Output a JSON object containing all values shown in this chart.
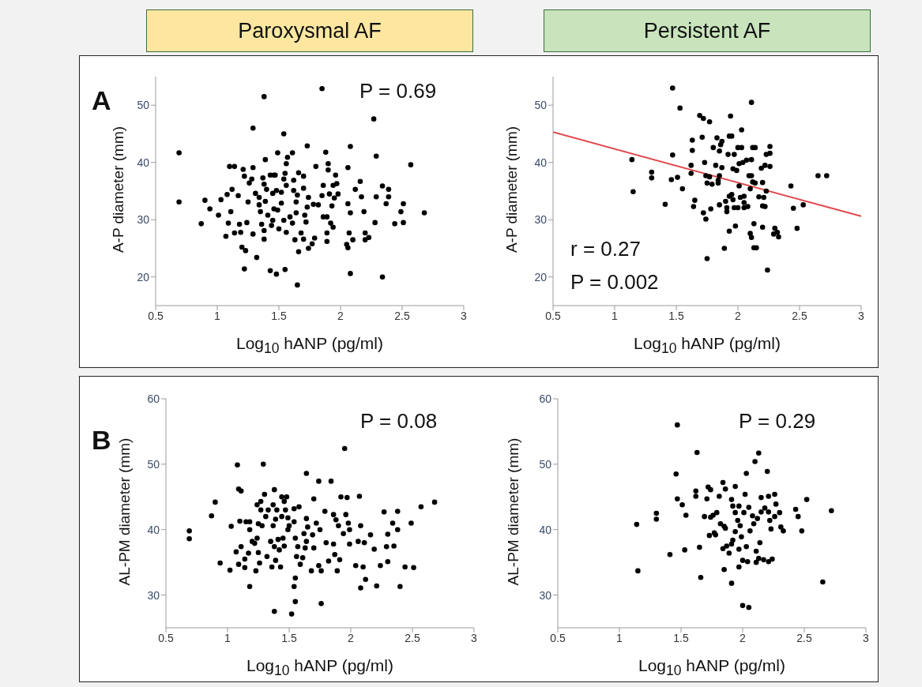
{
  "chart_data": [
    {
      "type": "scatter",
      "title": "Paroxysmal AF",
      "xlabel": "Log$_{10}$ hANP (pg/ml)",
      "ylabel": "A-P diameter (mm)",
      "annotations": [
        "A",
        "P = 0.69"
      ],
      "xlim": [
        0.5,
        3
      ],
      "xticks": [
        0.5,
        1,
        1.5,
        2,
        2.5,
        3
      ],
      "ylim": [
        15,
        55
      ],
      "yticks": [
        20,
        30,
        40,
        50
      ],
      "marker": "circle",
      "series": [
        {
          "color": "#000000",
          "x": [
            0.69,
            0.69,
            0.87,
            0.9,
            0.94,
            1.01,
            1.03,
            1.07,
            1.08,
            1.09,
            1.1,
            1.11,
            1.12,
            1.14,
            1.14,
            1.17,
            1.18,
            1.19,
            1.2,
            1.21,
            1.22,
            1.22,
            1.23,
            1.24,
            1.25,
            1.26,
            1.28,
            1.29,
            1.29,
            1.29,
            1.31,
            1.32,
            1.34,
            1.34,
            1.35,
            1.36,
            1.37,
            1.38,
            1.38,
            1.38,
            1.38,
            1.39,
            1.39,
            1.4,
            1.41,
            1.43,
            1.43,
            1.44,
            1.45,
            1.45,
            1.46,
            1.46,
            1.47,
            1.48,
            1.48,
            1.49,
            1.49,
            1.5,
            1.52,
            1.52,
            1.54,
            1.54,
            1.54,
            1.55,
            1.55,
            1.56,
            1.56,
            1.56,
            1.57,
            1.59,
            1.61,
            1.61,
            1.62,
            1.62,
            1.63,
            1.64,
            1.64,
            1.65,
            1.65,
            1.66,
            1.66,
            1.68,
            1.7,
            1.7,
            1.7,
            1.71,
            1.72,
            1.73,
            1.73,
            1.74,
            1.74,
            1.77,
            1.78,
            1.79,
            1.8,
            1.82,
            1.85,
            1.85,
            1.86,
            1.86,
            1.88,
            1.89,
            1.89,
            1.89,
            1.9,
            1.9,
            1.91,
            1.92,
            1.93,
            1.94,
            1.94,
            1.95,
            1.96,
            1.97,
            1.98,
            2.05,
            2.06,
            2.06,
            2.06,
            2.07,
            2.08,
            2.08,
            2.08,
            2.1,
            2.12,
            2.16,
            2.17,
            2.19,
            2.2,
            2.2,
            2.23,
            2.27,
            2.28,
            2.29,
            2.29,
            2.34,
            2.34,
            2.37,
            2.39,
            2.39,
            2.44,
            2.49,
            2.51,
            2.51,
            2.57,
            2.68
          ],
          "values": [
            41.7,
            33.1,
            29.3,
            33.4,
            31.9,
            30.8,
            33.5,
            27.1,
            34.4,
            29.4,
            39.3,
            31.4,
            35.3,
            27.7,
            39.3,
            34.2,
            29.2,
            27.8,
            25.2,
            38.8,
            21.4,
            37.6,
            24.6,
            29.5,
            33.1,
            36.4,
            37.1,
            39.1,
            27.5,
            46.0,
            34.6,
            23.4,
            32.6,
            33.9,
            31.4,
            29.2,
            37.3,
            36.2,
            26.6,
            51.5,
            28.1,
            40.5,
            33.2,
            35.3,
            30.8,
            37.8,
            21.1,
            29.0,
            34.6,
            29.9,
            37.8,
            31.9,
            37.8,
            20.5,
            35.1,
            41.7,
            31.7,
            28.4,
            32.9,
            34.8,
            45.0,
            37.1,
            29.9,
            21.3,
            38.1,
            27.8,
            39.8,
            36.0,
            40.9,
            30.5,
            29.4,
            41.7,
            35.1,
            36.9,
            26.5,
            31.2,
            33.1,
            34.3,
            18.6,
            24.4,
            38.2,
            27.7,
            26.6,
            37.6,
            35.5,
            30.8,
            29.6,
            32.2,
            42.9,
            33.9,
            25.0,
            25.8,
            32.7,
            26.8,
            39.3,
            32.6,
            52.9,
            34.2,
            36.0,
            30.5,
            41.8,
            27.7,
            26.2,
            30.5,
            38.7,
            39.8,
            34.5,
            29.4,
            32.4,
            28.7,
            36.0,
            33.8,
            37.8,
            36.3,
            34.5,
            25.7,
            32.8,
            39.1,
            25.1,
            27.7,
            20.6,
            42.8,
            31.2,
            26.5,
            35.3,
            36.7,
            34.0,
            31.4,
            27.7,
            26.5,
            26.9,
            47.6,
            29.5,
            41.1,
            34.0,
            35.9,
            20.0,
            32.8,
            35.3,
            34.0,
            29.3,
            31.4,
            32.8,
            29.5,
            39.6,
            31.2
          ]
        }
      ]
    },
    {
      "type": "scatter",
      "title": "Persistent AF",
      "xlabel": "Log$_{10}$ hANP (pg/ml)",
      "ylabel": "A-P diameter (mm)",
      "annotations": [
        "r = 0.27",
        "P = 0.002"
      ],
      "xlim": [
        0.5,
        3
      ],
      "xticks": [
        0.5,
        1,
        1.5,
        2,
        2.5,
        3
      ],
      "ylim": [
        15,
        55
      ],
      "yticks": [
        20,
        30,
        40,
        50
      ],
      "marker": "circle",
      "series": [
        {
          "color": "#000000",
          "x": [
            1.14,
            1.15,
            1.3,
            1.3,
            1.41,
            1.46,
            1.47,
            1.47,
            1.51,
            1.53,
            1.55,
            1.62,
            1.62,
            1.63,
            1.63,
            1.64,
            1.65,
            1.69,
            1.71,
            1.72,
            1.72,
            1.73,
            1.74,
            1.74,
            1.75,
            1.75,
            1.77,
            1.77,
            1.78,
            1.79,
            1.8,
            1.82,
            1.83,
            1.84,
            1.84,
            1.85,
            1.85,
            1.85,
            1.86,
            1.87,
            1.87,
            1.89,
            1.9,
            1.91,
            1.91,
            1.92,
            1.93,
            1.93,
            1.93,
            1.94,
            1.95,
            1.95,
            1.96,
            1.96,
            1.97,
            1.97,
            1.98,
            1.99,
            2.0,
            2.0,
            2.01,
            2.01,
            2.02,
            2.03,
            2.03,
            2.04,
            2.05,
            2.05,
            2.05,
            2.07,
            2.08,
            2.09,
            2.1,
            2.1,
            2.11,
            2.11,
            2.11,
            2.11,
            2.12,
            2.12,
            2.13,
            2.13,
            2.14,
            2.14,
            2.15,
            2.17,
            2.19,
            2.2,
            2.2,
            2.2,
            2.21,
            2.22,
            2.22,
            2.23,
            2.23,
            2.24,
            2.26,
            2.26,
            2.26,
            2.29,
            2.3,
            2.32,
            2.33,
            2.43,
            2.45,
            2.48,
            2.53,
            2.65,
            2.72
          ],
          "values": [
            40.5,
            34.9,
            38.3,
            37.3,
            32.7,
            37.0,
            41.3,
            53.0,
            37.4,
            49.5,
            35.4,
            38.1,
            39.5,
            42.1,
            43.9,
            32.3,
            33.4,
            48.2,
            44.4,
            47.7,
            31.2,
            40.0,
            30.1,
            37.7,
            36.4,
            23.2,
            47.1,
            37.5,
            31.9,
            36.2,
            42.6,
            39.5,
            44.3,
            36.9,
            36.4,
            37.7,
            42.0,
            32.6,
            43.1,
            39.1,
            43.7,
            25.0,
            33.2,
            31.4,
            32.1,
            41.4,
            28.0,
            44.6,
            34.1,
            48.1,
            44.6,
            34.4,
            33.5,
            38.9,
            32.1,
            41.4,
            28.9,
            38.6,
            32.1,
            42.6,
            35.9,
            39.8,
            33.9,
            45.7,
            42.6,
            40.0,
            34.1,
            32.1,
            33.0,
            40.4,
            32.3,
            37.7,
            35.4,
            27.6,
            50.5,
            26.9,
            40.5,
            37.7,
            42.6,
            36.6,
            29.3,
            25.1,
            42.6,
            36.4,
            25.1,
            34.0,
            39.0,
            36.5,
            32.4,
            28.7,
            33.9,
            39.5,
            32.3,
            41.4,
            35.0,
            21.2,
            41.6,
            42.8,
            39.3,
            27.5,
            28.5,
            27.8,
            27.0,
            35.9,
            32.0,
            28.5,
            32.6,
            37.7,
            37.7
          ]
        },
        {
          "type": "line",
          "color": "#e0474c",
          "marker": "none",
          "x": [
            0.5,
            3
          ],
          "values": [
            45.3,
            30.6
          ]
        }
      ]
    },
    {
      "type": "scatter",
      "xlabel": "Log$_{10}$ hANP (pg/ml)",
      "ylabel": "AL-PM diameter (mm)",
      "annotations": [
        "B",
        "P = 0.08"
      ],
      "xlim": [
        0.5,
        3
      ],
      "xticks": [
        0.5,
        1,
        1.5,
        2,
        2.5,
        3
      ],
      "ylim": [
        25,
        60
      ],
      "yticks": [
        30,
        40,
        50,
        60
      ],
      "marker": "circle",
      "series": [
        {
          "color": "#000000",
          "x": [
            0.69,
            0.69,
            0.87,
            0.9,
            0.94,
            1.02,
            1.03,
            1.07,
            1.08,
            1.09,
            1.09,
            1.1,
            1.11,
            1.11,
            1.14,
            1.14,
            1.15,
            1.17,
            1.18,
            1.18,
            1.18,
            1.2,
            1.22,
            1.23,
            1.24,
            1.24,
            1.25,
            1.25,
            1.26,
            1.27,
            1.27,
            1.28,
            1.29,
            1.3,
            1.31,
            1.32,
            1.33,
            1.35,
            1.36,
            1.37,
            1.37,
            1.38,
            1.38,
            1.38,
            1.39,
            1.39,
            1.4,
            1.41,
            1.42,
            1.43,
            1.44,
            1.44,
            1.45,
            1.46,
            1.46,
            1.47,
            1.48,
            1.49,
            1.49,
            1.5,
            1.52,
            1.54,
            1.54,
            1.54,
            1.55,
            1.55,
            1.55,
            1.56,
            1.57,
            1.58,
            1.59,
            1.61,
            1.62,
            1.63,
            1.64,
            1.64,
            1.64,
            1.65,
            1.68,
            1.69,
            1.7,
            1.7,
            1.72,
            1.74,
            1.74,
            1.75,
            1.76,
            1.76,
            1.79,
            1.8,
            1.82,
            1.84,
            1.86,
            1.86,
            1.87,
            1.88,
            1.89,
            1.9,
            1.91,
            1.92,
            1.94,
            1.95,
            1.96,
            1.97,
            1.98,
            1.99,
            1.99,
            2.04,
            2.06,
            2.07,
            2.08,
            2.08,
            2.1,
            2.11,
            2.12,
            2.16,
            2.19,
            2.21,
            2.24,
            2.27,
            2.29,
            2.3,
            2.3,
            2.34,
            2.35,
            2.38,
            2.38,
            2.4,
            2.44,
            2.49,
            2.51,
            2.57,
            2.68
          ],
          "values": [
            39.8,
            38.6,
            42.1,
            44.2,
            34.9,
            33.8,
            40.5,
            36.6,
            49.9,
            34.7,
            46.2,
            41.3,
            45.9,
            37.4,
            34.2,
            35.5,
            41.2,
            36.4,
            31.3,
            41.2,
            40.0,
            38.2,
            37.9,
            33.7,
            38.7,
            43.8,
            40.9,
            36.5,
            34.9,
            44.3,
            43.0,
            40.6,
            50.0,
            45.4,
            42.0,
            35.9,
            43.0,
            38.2,
            34.3,
            43.8,
            40.6,
            37.4,
            46.1,
            27.5,
            35.3,
            41.6,
            43.0,
            38.5,
            36.9,
            34.3,
            45.0,
            42.0,
            38.7,
            44.3,
            37.5,
            43.0,
            45.0,
            40.0,
            41.8,
            40.6,
            27.1,
            41.2,
            43.2,
            31.3,
            32.6,
            29.0,
            38.7,
            35.9,
            37.4,
            43.5,
            34.7,
            35.7,
            39.4,
            37.2,
            48.6,
            41.7,
            38.2,
            40.4,
            33.7,
            39.2,
            44.7,
            37.2,
            41.0,
            47.4,
            34.5,
            40.0,
            33.7,
            28.7,
            42.8,
            38.0,
            35.2,
            47.4,
            42.3,
            37.8,
            36.2,
            41.5,
            33.7,
            40.6,
            35.4,
            45.0,
            39.4,
            52.4,
            42.3,
            44.9,
            41.0,
            37.8,
            40.0,
            34.5,
            38.2,
            45.1,
            31.1,
            40.6,
            34.3,
            38.0,
            32.4,
            39.2,
            37.0,
            31.4,
            34.5,
            42.7,
            37.4,
            39.3,
            35.1,
            41.0,
            37.5,
            40.0,
            42.8,
            31.3,
            34.3,
            41.0,
            34.2,
            43.5,
            44.2
          ]
        }
      ]
    },
    {
      "type": "scatter",
      "xlabel": "Log$_{10}$ hANP (pg/ml)",
      "ylabel": "AL-PM diameter (mm)",
      "annotations": [
        "P = 0.29"
      ],
      "xlim": [
        0.5,
        3
      ],
      "xticks": [
        0.5,
        1,
        1.5,
        2,
        2.5,
        3
      ],
      "ylim": [
        25,
        60
      ],
      "yticks": [
        30,
        40,
        50,
        60
      ],
      "marker": "circle",
      "series": [
        {
          "color": "#000000",
          "x": [
            1.14,
            1.15,
            1.3,
            1.3,
            1.41,
            1.46,
            1.47,
            1.47,
            1.51,
            1.53,
            1.54,
            1.62,
            1.62,
            1.63,
            1.65,
            1.66,
            1.69,
            1.71,
            1.72,
            1.73,
            1.74,
            1.74,
            1.76,
            1.77,
            1.78,
            1.79,
            1.81,
            1.82,
            1.84,
            1.84,
            1.85,
            1.85,
            1.86,
            1.86,
            1.87,
            1.89,
            1.91,
            1.91,
            1.91,
            1.92,
            1.92,
            1.94,
            1.94,
            1.94,
            1.96,
            1.97,
            1.97,
            1.97,
            1.98,
            1.99,
            2.0,
            2.0,
            2.01,
            2.02,
            2.03,
            2.03,
            2.04,
            2.05,
            2.05,
            2.06,
            2.08,
            2.09,
            2.1,
            2.11,
            2.11,
            2.12,
            2.13,
            2.13,
            2.14,
            2.15,
            2.15,
            2.17,
            2.18,
            2.2,
            2.21,
            2.21,
            2.21,
            2.22,
            2.23,
            2.24,
            2.26,
            2.26,
            2.27,
            2.3,
            2.31,
            2.33,
            2.43,
            2.45,
            2.48,
            2.52,
            2.65,
            2.72
          ],
          "values": [
            40.8,
            33.7,
            42.5,
            41.6,
            36.2,
            48.5,
            44.7,
            56.0,
            43.8,
            36.9,
            42.2,
            45.9,
            45.1,
            51.8,
            37.3,
            32.7,
            42.0,
            44.7,
            46.5,
            39.1,
            46.1,
            41.9,
            42.2,
            39.5,
            39.2,
            42.6,
            45.1,
            40.9,
            37.1,
            47.2,
            33.9,
            40.5,
            46.2,
            40.2,
            37.5,
            36.4,
            37.8,
            31.8,
            44.6,
            38.4,
            43.6,
            39.7,
            46.6,
            42.6,
            41.4,
            37.0,
            43.6,
            34.3,
            40.6,
            38.9,
            28.4,
            35.3,
            42.6,
            45.4,
            48.6,
            37.4,
            35.1,
            43.4,
            28.1,
            39.8,
            42.1,
            40.9,
            50.4,
            35.0,
            36.7,
            41.7,
            35.6,
            51.7,
            38.0,
            44.9,
            42.7,
            35.4,
            43.3,
            48.9,
            35.1,
            42.7,
            45.1,
            41.4,
            40.1,
            35.5,
            45.4,
            42.0,
            43.9,
            42.6,
            40.4,
            39.8,
            43.1,
            42.0,
            39.8,
            44.6,
            32.0,
            42.9
          ]
        }
      ]
    }
  ]
}
